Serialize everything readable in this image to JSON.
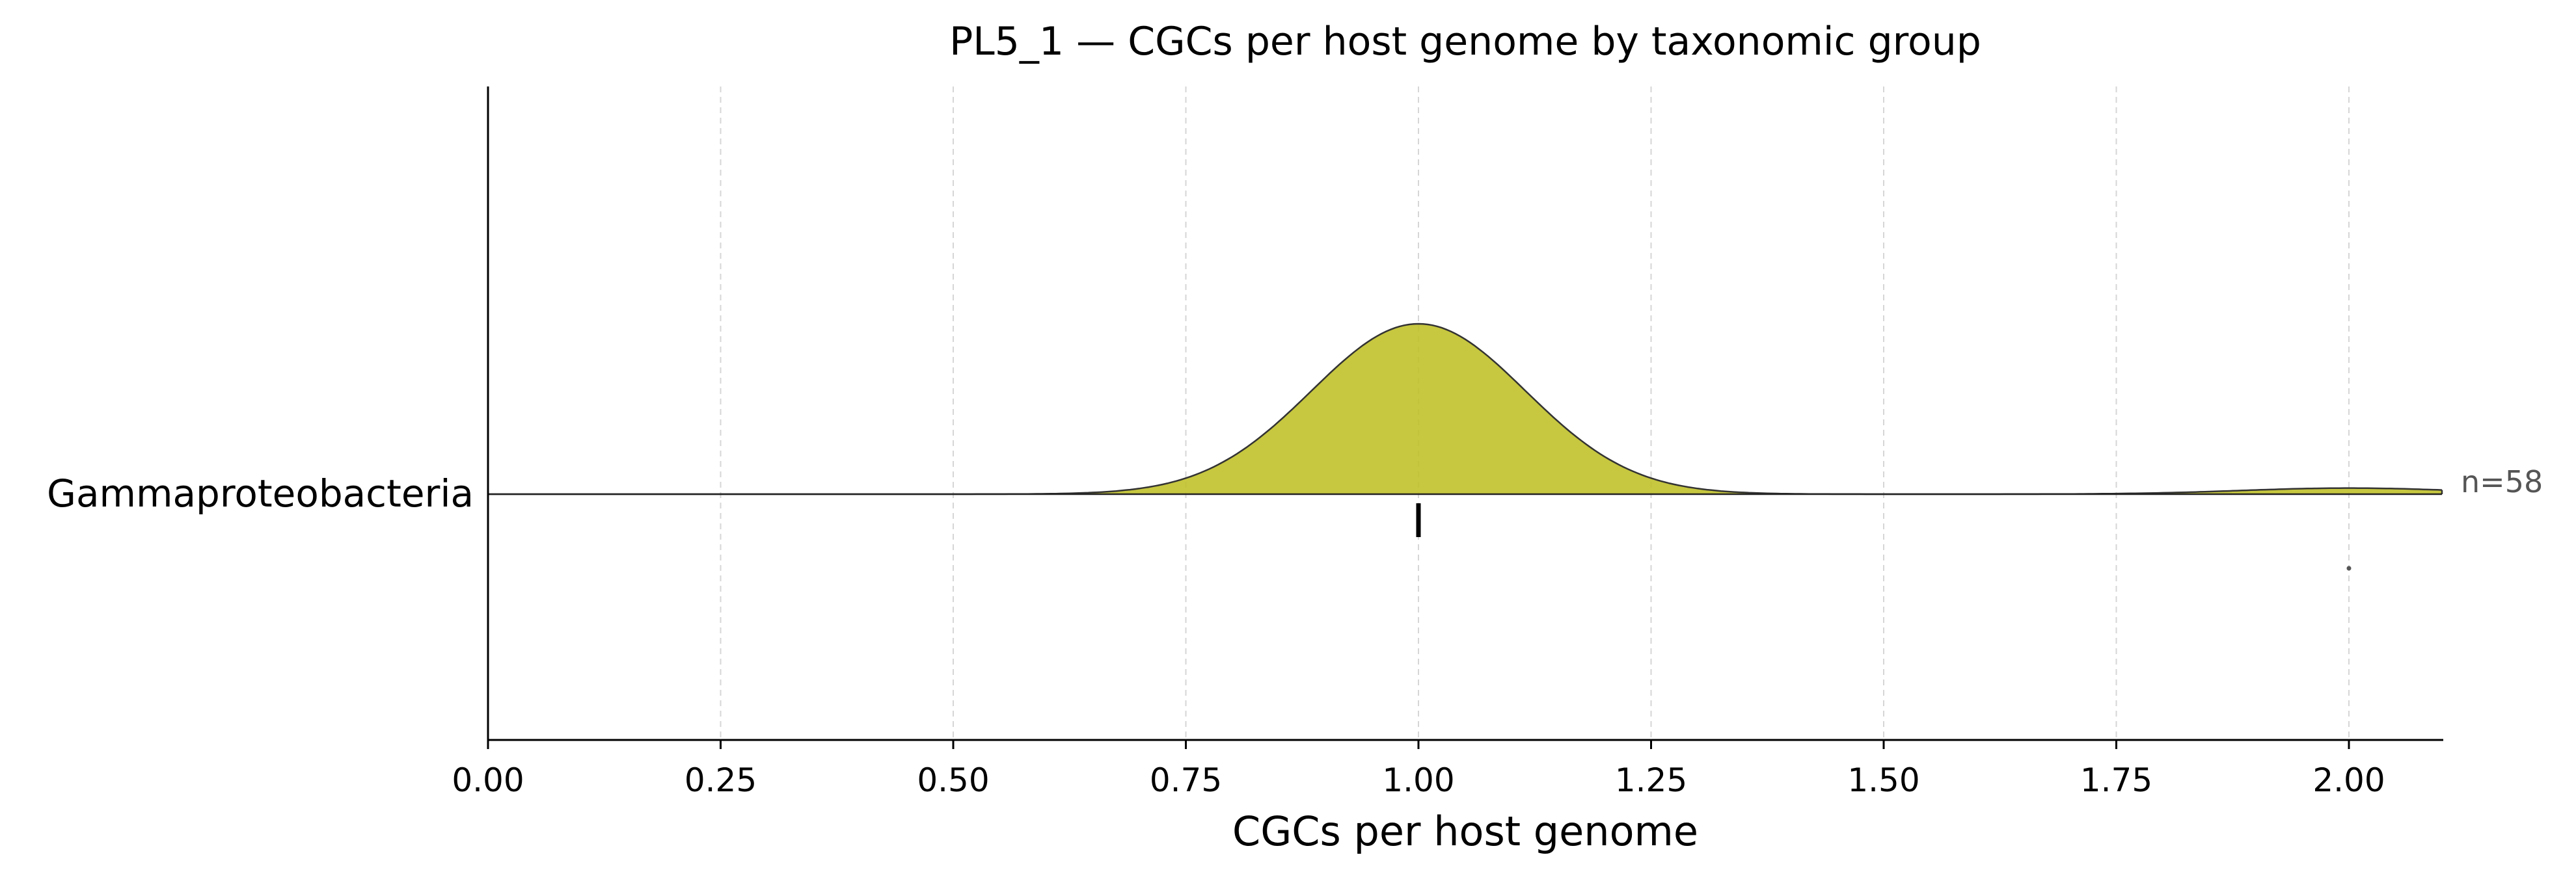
{
  "chart_data": {
    "type": "ridgeline",
    "title": "PL5_1 — CGCs per host genome by taxonomic group",
    "xlabel": "CGCs per host genome",
    "ylabel": "",
    "xlim": [
      0,
      2.1
    ],
    "xticks": [
      0.0,
      0.25,
      0.5,
      0.75,
      1.0,
      1.25,
      1.5,
      1.75,
      2.0
    ],
    "xtick_labels": [
      "0.00",
      "0.25",
      "0.50",
      "0.75",
      "1.00",
      "1.25",
      "1.50",
      "1.75",
      "2.00"
    ],
    "grid": "vertical dashed",
    "groups": [
      {
        "name": "Gammaproteobacteria",
        "n_label": "n=58",
        "color": "#bfbf26",
        "kde": {
          "components": [
            {
              "mean": 1.0,
              "sd": 0.115,
              "weight": 0.9655
            },
            {
              "mean": 2.0,
              "sd": 0.115,
              "weight": 0.0345
            }
          ]
        },
        "median": 1.0,
        "outliers": [
          2.0
        ]
      }
    ]
  }
}
